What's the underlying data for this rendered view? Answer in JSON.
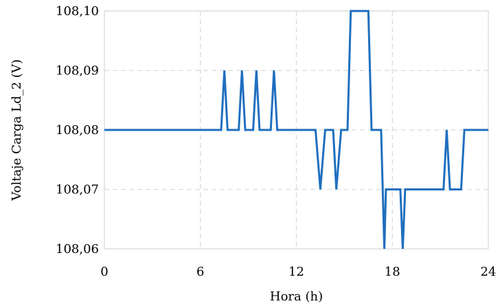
{
  "chart_data": {
    "type": "line",
    "title": "",
    "xlabel": "Hora (h)",
    "ylabel": "Voltaje Carga Ld_2 (V)",
    "xlim": [
      0,
      24
    ],
    "ylim": [
      108.06,
      108.1
    ],
    "xticks": [
      0,
      6,
      12,
      18,
      24
    ],
    "xtick_labels": [
      "0",
      "6",
      "12",
      "18",
      "24"
    ],
    "yticks": [
      108.06,
      108.07,
      108.08,
      108.09,
      108.1
    ],
    "ytick_labels": [
      "108,06",
      "108,07",
      "108,08",
      "108,09",
      "108,10"
    ],
    "grid": true,
    "legend": "none",
    "series": [
      {
        "color": "#1f6fbf",
        "x": [
          0,
          7.3,
          7.5,
          7.7,
          8.4,
          8.6,
          8.8,
          9.3,
          9.5,
          9.7,
          10.4,
          10.6,
          10.8,
          13.2,
          13.5,
          13.8,
          14.3,
          14.5,
          14.8,
          15.2,
          15.4,
          16.5,
          16.7,
          17.3,
          17.5,
          17.6,
          18.5,
          18.65,
          18.8,
          21.2,
          21.4,
          21.6,
          22.3,
          22.5,
          24
        ],
        "y": [
          108.08,
          108.08,
          108.09,
          108.08,
          108.08,
          108.09,
          108.08,
          108.08,
          108.09,
          108.08,
          108.08,
          108.09,
          108.08,
          108.08,
          108.07,
          108.08,
          108.08,
          108.07,
          108.08,
          108.08,
          108.1,
          108.1,
          108.08,
          108.08,
          108.06,
          108.07,
          108.07,
          108.06,
          108.07,
          108.07,
          108.08,
          108.07,
          108.07,
          108.08,
          108.08
        ]
      }
    ]
  }
}
